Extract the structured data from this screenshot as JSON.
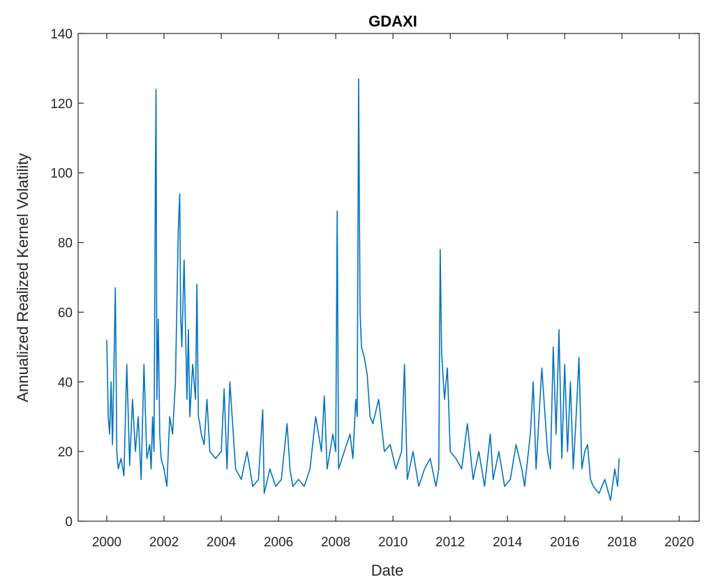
{
  "chart_data": {
    "type": "line",
    "title": "GDAXI",
    "xlabel": "Date",
    "ylabel": "Annualized Realized Kernel Volatility",
    "xlim": [
      1999,
      2020.7
    ],
    "ylim": [
      0,
      140
    ],
    "xticks": [
      "2000",
      "2002",
      "2004",
      "2006",
      "2008",
      "2010",
      "2012",
      "2014",
      "2016",
      "2018",
      "2020"
    ],
    "yticks": [
      "0",
      "20",
      "40",
      "60",
      "80",
      "100",
      "120",
      "140"
    ],
    "grid": false,
    "line_color": "#0072BD",
    "series": [
      {
        "x": [
          2000.0,
          2000.05,
          2000.1,
          2000.15,
          2000.2,
          2000.3,
          2000.35,
          2000.4,
          2000.5,
          2000.6,
          2000.7,
          2000.8,
          2000.9,
          2001.0,
          2001.1,
          2001.2,
          2001.3,
          2001.4,
          2001.5,
          2001.55,
          2001.6,
          2001.65,
          2001.7,
          2001.72,
          2001.75,
          2001.8,
          2001.85,
          2001.9,
          2002.0,
          2002.1,
          2002.2,
          2002.3,
          2002.4,
          2002.5,
          2002.55,
          2002.58,
          2002.62,
          2002.7,
          2002.8,
          2002.85,
          2002.9,
          2003.0,
          2003.1,
          2003.15,
          2003.2,
          2003.25,
          2003.3,
          2003.4,
          2003.5,
          2003.6,
          2003.8,
          2004.0,
          2004.1,
          2004.2,
          2004.3,
          2004.5,
          2004.7,
          2004.9,
          2005.1,
          2005.3,
          2005.45,
          2005.5,
          2005.7,
          2005.9,
          2006.1,
          2006.3,
          2006.4,
          2006.5,
          2006.7,
          2006.9,
          2007.1,
          2007.3,
          2007.5,
          2007.6,
          2007.7,
          2007.9,
          2008.0,
          2008.05,
          2008.1,
          2008.3,
          2008.5,
          2008.6,
          2008.7,
          2008.75,
          2008.8,
          2008.85,
          2008.9,
          2009.0,
          2009.1,
          2009.2,
          2009.3,
          2009.5,
          2009.7,
          2009.9,
          2010.1,
          2010.3,
          2010.4,
          2010.5,
          2010.7,
          2010.9,
          2011.1,
          2011.3,
          2011.5,
          2011.6,
          2011.65,
          2011.7,
          2011.8,
          2011.9,
          2012.0,
          2012.2,
          2012.4,
          2012.6,
          2012.8,
          2013.0,
          2013.2,
          2013.4,
          2013.5,
          2013.7,
          2013.9,
          2014.1,
          2014.3,
          2014.5,
          2014.6,
          2014.8,
          2014.9,
          2015.0,
          2015.2,
          2015.4,
          2015.5,
          2015.6,
          2015.7,
          2015.8,
          2015.9,
          2016.0,
          2016.1,
          2016.2,
          2016.3,
          2016.4,
          2016.5,
          2016.6,
          2016.7,
          2016.8,
          2016.9,
          2017.0,
          2017.2,
          2017.4,
          2017.6,
          2017.75,
          2017.85,
          2017.9
        ],
        "y": [
          52,
          30,
          25,
          40,
          22,
          67,
          20,
          15,
          18,
          13,
          45,
          16,
          35,
          20,
          30,
          12,
          45,
          18,
          22,
          15,
          30,
          20,
          100,
          124,
          35,
          58,
          25,
          18,
          15,
          10,
          30,
          25,
          40,
          84,
          94,
          60,
          50,
          75,
          35,
          55,
          30,
          45,
          35,
          68,
          30,
          28,
          25,
          22,
          35,
          20,
          18,
          20,
          38,
          15,
          40,
          15,
          12,
          20,
          10,
          12,
          32,
          8,
          15,
          10,
          12,
          28,
          15,
          10,
          12,
          10,
          15,
          30,
          20,
          36,
          15,
          25,
          20,
          89,
          15,
          20,
          25,
          18,
          35,
          30,
          127,
          60,
          50,
          47,
          42,
          30,
          28,
          35,
          20,
          22,
          15,
          20,
          45,
          12,
          20,
          10,
          15,
          18,
          10,
          15,
          78,
          48,
          35,
          44,
          20,
          18,
          15,
          28,
          12,
          20,
          10,
          25,
          12,
          20,
          10,
          12,
          22,
          15,
          10,
          25,
          40,
          15,
          44,
          20,
          15,
          50,
          25,
          55,
          18,
          45,
          20,
          40,
          15,
          30,
          47,
          15,
          20,
          22,
          12,
          10,
          8,
          12,
          6,
          15,
          10,
          18
        ]
      }
    ]
  }
}
